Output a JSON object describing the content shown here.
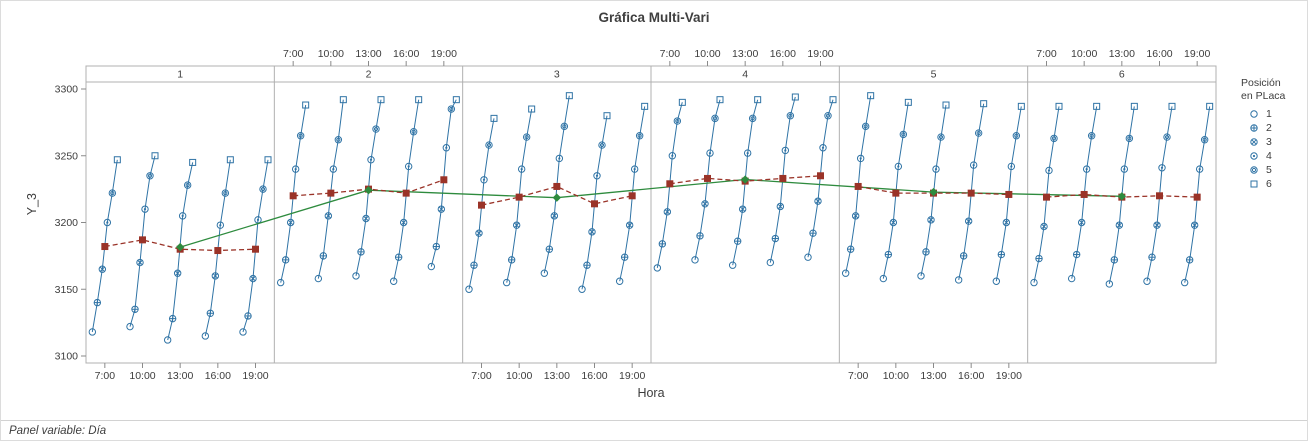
{
  "chart_data": {
    "type": "line",
    "variant": "multi-vari",
    "title": "Gráfica Multi-Vari",
    "xlabel": "Hora",
    "ylabel": "Y_3",
    "footer_note": "Panel variable: Día",
    "panel_variable": "Día",
    "panels": [
      "1",
      "2",
      "3",
      "4",
      "5",
      "6"
    ],
    "times": [
      "7:00",
      "10:00",
      "13:00",
      "16:00",
      "19:00"
    ],
    "ylim": [
      3100,
      3300
    ],
    "yticks": [
      3100,
      3150,
      3200,
      3250,
      3300
    ],
    "axis_layout": {
      "bottom_labels_panels": [
        "1",
        "3",
        "5"
      ],
      "top_labels_panels": [
        "2",
        "4",
        "6"
      ],
      "grid": false
    },
    "legend": {
      "title_line1": "Posición",
      "title_line2": "en PLaca",
      "items": [
        "1",
        "2",
        "3",
        "4",
        "5",
        "6"
      ],
      "marker_shapes": [
        "circle",
        "circle-plus",
        "circle-cross",
        "circle-dot",
        "circle-ring",
        "square"
      ]
    },
    "colors": {
      "points": "#2f73a5",
      "time_mean": "#9a3328",
      "panel_mean": "#2e8b3e",
      "frame": "#b0b0b0",
      "text": "#3d3d3d"
    },
    "time_means": [
      [
        3182,
        3187,
        3180,
        3179,
        3180
      ],
      [
        3220,
        3222,
        3225,
        3222,
        3232
      ],
      [
        3213,
        3219,
        3227,
        3214,
        3220
      ],
      [
        3229,
        3233,
        3231,
        3233,
        3235
      ],
      [
        3227,
        3222,
        3222,
        3222,
        3221
      ],
      [
        3219,
        3221,
        3219,
        3220,
        3219
      ]
    ],
    "panel_means": [
      3181.6,
      3224.2,
      3218.6,
      3232.2,
      3222.8,
      3219.6
    ],
    "points": [
      [
        [
          3118,
          3140,
          3165,
          3200,
          3222,
          3247
        ],
        [
          3122,
          3135,
          3170,
          3210,
          3235,
          3250
        ],
        [
          3112,
          3128,
          3162,
          3205,
          3228,
          3245
        ],
        [
          3115,
          3132,
          3160,
          3198,
          3222,
          3247
        ],
        [
          3118,
          3130,
          3158,
          3202,
          3225,
          3247
        ]
      ],
      [
        [
          3155,
          3172,
          3200,
          3240,
          3265,
          3288
        ],
        [
          3158,
          3175,
          3205,
          3240,
          3262,
          3292
        ],
        [
          3160,
          3178,
          3203,
          3247,
          3270,
          3292
        ],
        [
          3156,
          3174,
          3200,
          3242,
          3268,
          3292
        ],
        [
          3167,
          3182,
          3210,
          3256,
          3285,
          3292
        ]
      ],
      [
        [
          3150,
          3168,
          3192,
          3232,
          3258,
          3278
        ],
        [
          3155,
          3172,
          3198,
          3240,
          3264,
          3285
        ],
        [
          3162,
          3180,
          3205,
          3248,
          3272,
          3295
        ],
        [
          3150,
          3168,
          3193,
          3235,
          3258,
          3280
        ],
        [
          3156,
          3174,
          3198,
          3240,
          3265,
          3287
        ]
      ],
      [
        [
          3166,
          3184,
          3208,
          3250,
          3276,
          3290
        ],
        [
          3172,
          3190,
          3214,
          3252,
          3278,
          3292
        ],
        [
          3168,
          3186,
          3210,
          3252,
          3278,
          3292
        ],
        [
          3170,
          3188,
          3212,
          3254,
          3280,
          3294
        ],
        [
          3174,
          3192,
          3216,
          3256,
          3280,
          3292
        ]
      ],
      [
        [
          3162,
          3180,
          3205,
          3248,
          3272,
          3295
        ],
        [
          3158,
          3176,
          3200,
          3242,
          3266,
          3290
        ],
        [
          3160,
          3178,
          3202,
          3240,
          3264,
          3288
        ],
        [
          3157,
          3175,
          3201,
          3243,
          3267,
          3289
        ],
        [
          3156,
          3176,
          3200,
          3242,
          3265,
          3287
        ]
      ],
      [
        [
          3155,
          3173,
          3197,
          3239,
          3263,
          3287
        ],
        [
          3158,
          3176,
          3200,
          3240,
          3265,
          3287
        ],
        [
          3154,
          3172,
          3198,
          3240,
          3263,
          3287
        ],
        [
          3156,
          3174,
          3198,
          3241,
          3264,
          3287
        ],
        [
          3155,
          3172,
          3198,
          3240,
          3262,
          3287
        ]
      ]
    ]
  }
}
